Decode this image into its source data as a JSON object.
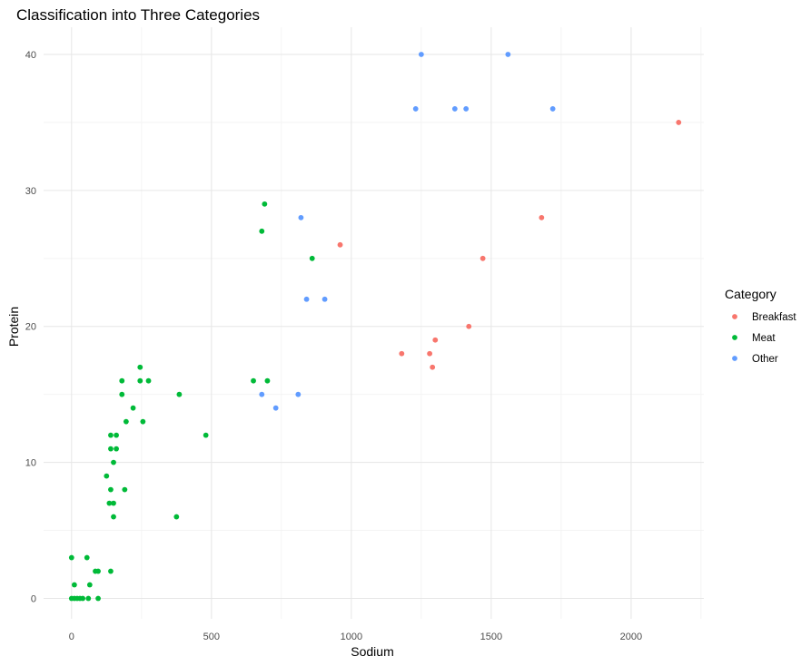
{
  "chart_data": {
    "type": "scatter",
    "title": "Classification into Three Categories",
    "xlabel": "Sodium",
    "ylabel": "Protein",
    "xlim": [
      -100,
      2260
    ],
    "ylim": [
      -1.5,
      42
    ],
    "xticks": [
      0,
      500,
      1000,
      1500,
      2000
    ],
    "xtick_labels": [
      "0",
      "500",
      "1000",
      "1500",
      "2000"
    ],
    "yticks": [
      0,
      10,
      20,
      30,
      40
    ],
    "ytick_labels": [
      "0",
      "10",
      "20",
      "30",
      "40"
    ],
    "grid": true,
    "legend": {
      "title": "Category",
      "placement": "right"
    },
    "series": [
      {
        "name": "Breakfast",
        "color": "#F8766D",
        "points": [
          [
            2170,
            35
          ],
          [
            1680,
            28
          ],
          [
            960,
            26
          ],
          [
            1470,
            25
          ],
          [
            1420,
            20
          ],
          [
            1300,
            19
          ],
          [
            1180,
            18
          ],
          [
            1280,
            18
          ],
          [
            1290,
            17
          ]
        ]
      },
      {
        "name": "Meat",
        "color": "#00BA38",
        "points": [
          [
            690,
            29
          ],
          [
            680,
            27
          ],
          [
            860,
            25
          ],
          [
            245,
            17
          ],
          [
            180,
            16
          ],
          [
            245,
            16
          ],
          [
            275,
            16
          ],
          [
            650,
            16
          ],
          [
            700,
            16
          ],
          [
            180,
            15
          ],
          [
            385,
            15
          ],
          [
            220,
            14
          ],
          [
            195,
            13
          ],
          [
            255,
            13
          ],
          [
            140,
            12
          ],
          [
            160,
            12
          ],
          [
            480,
            12
          ],
          [
            140,
            11
          ],
          [
            160,
            11
          ],
          [
            150,
            10
          ],
          [
            125,
            9
          ],
          [
            140,
            8
          ],
          [
            190,
            8
          ],
          [
            135,
            7
          ],
          [
            150,
            7
          ],
          [
            150,
            6
          ],
          [
            375,
            6
          ],
          [
            0,
            3
          ],
          [
            55,
            3
          ],
          [
            85,
            2
          ],
          [
            95,
            2
          ],
          [
            140,
            2
          ],
          [
            10,
            1
          ],
          [
            65,
            1
          ],
          [
            0,
            0
          ],
          [
            10,
            0
          ],
          [
            20,
            0
          ],
          [
            30,
            0
          ],
          [
            40,
            0
          ],
          [
            60,
            0
          ],
          [
            95,
            0
          ]
        ]
      },
      {
        "name": "Other",
        "color": "#619CFF",
        "points": [
          [
            1250,
            40
          ],
          [
            1560,
            40
          ],
          [
            1230,
            36
          ],
          [
            1370,
            36
          ],
          [
            1410,
            36
          ],
          [
            1720,
            36
          ],
          [
            820,
            28
          ],
          [
            840,
            22
          ],
          [
            905,
            22
          ],
          [
            680,
            15
          ],
          [
            810,
            15
          ],
          [
            730,
            14
          ]
        ]
      }
    ]
  }
}
